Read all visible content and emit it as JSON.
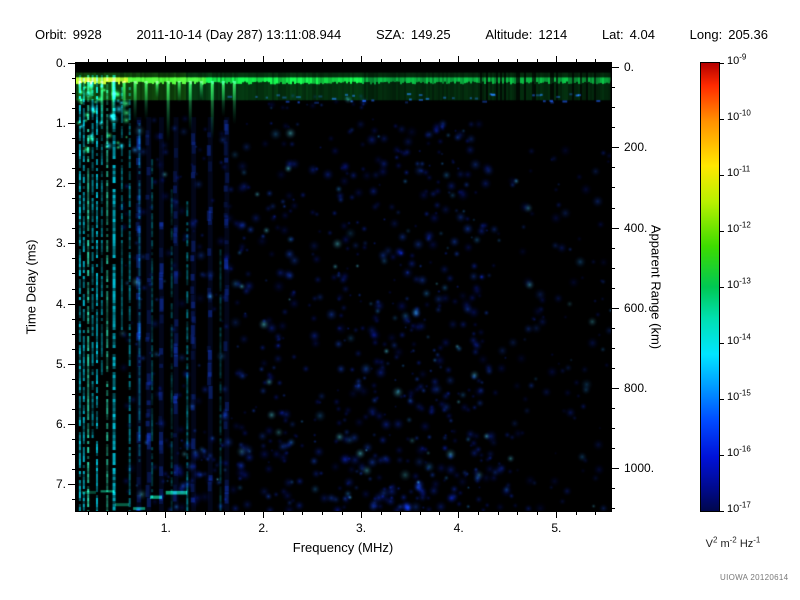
{
  "header": {
    "orbit_label": "Orbit:",
    "orbit": "9928",
    "datetime": "2011-10-14 (Day 287) 13:11:08.944",
    "sza_label": "SZA:",
    "sza": "149.25",
    "altitude_label": "Altitude:",
    "altitude": "1214",
    "lat_label": "Lat:",
    "lat": "4.04",
    "long_label": "Long:",
    "long": "205.36"
  },
  "chart_data": {
    "type": "heatmap",
    "xlabel": "Frequency (MHz)",
    "ylabel": "Time Delay (ms)",
    "ylabel_right": "Apparent Range (km)",
    "xlim": [
      0.08,
      5.56
    ],
    "ylim": [
      0,
      7.45
    ],
    "x_major_ticks": [
      1,
      2,
      3,
      4,
      5
    ],
    "x_tick_labels": [
      "1.",
      "2.",
      "3.",
      "4.",
      "5."
    ],
    "y_major_ticks": [
      0,
      1,
      2,
      3,
      4,
      5,
      6,
      7
    ],
    "y_tick_labels": [
      "0.",
      "1.",
      "2.",
      "3.",
      "4.",
      "5.",
      "6.",
      "7."
    ],
    "grid": false,
    "right_axis": {
      "ticks_km": [
        0,
        200,
        400,
        600,
        800,
        1000
      ],
      "tick_labels": [
        "0.",
        "200.",
        "400.",
        "600.",
        "800.",
        "1000."
      ],
      "km_per_ms": 150,
      "offset_ms": 0.07
    },
    "colorbar": {
      "base": "10",
      "exponents": [
        "-9",
        "-10",
        "-11",
        "-12",
        "-13",
        "-14",
        "-15",
        "-16",
        "-17"
      ],
      "scale_max": "1e-9",
      "scale_min": "1e-17",
      "unit_parts": [
        [
          "V",
          "2"
        ],
        [
          "m",
          "-2"
        ],
        [
          "Hz",
          "-1"
        ]
      ],
      "gradient": [
        [
          "#b40000",
          0
        ],
        [
          "#ff2a00",
          0.05
        ],
        [
          "#ff9100",
          0.13
        ],
        [
          "#ffe800",
          0.23
        ],
        [
          "#b8f000",
          0.31
        ],
        [
          "#3ddc00",
          0.41
        ],
        [
          "#00c853",
          0.5
        ],
        [
          "#00e0b0",
          0.57
        ],
        [
          "#00e5ff",
          0.65
        ],
        [
          "#009dff",
          0.72
        ],
        [
          "#0049ff",
          0.8
        ],
        [
          "#0012d8",
          0.88
        ],
        [
          "#000a8c",
          0.95
        ],
        [
          "#00074d",
          1
        ]
      ]
    },
    "features": {
      "surface_echo_delay_ms": 0.3,
      "faint_stripes": [
        0.72,
        0.82,
        0.95,
        1.1,
        1.28,
        1.45,
        1.62
      ],
      "sparse_bands": [
        [
          1.86,
          1.98
        ],
        [
          2.32,
          2.5
        ],
        [
          2.58,
          2.72
        ]
      ],
      "plasma_lines": [
        {
          "f": 0.12,
          "i": 0.9,
          "t0": 0.2,
          "t1": 7.45,
          "w": 2
        },
        {
          "f": 0.16,
          "i": 0.8,
          "t0": 0.2,
          "t1": 7.45,
          "w": 2
        },
        {
          "f": 0.205,
          "i": 0.95,
          "t0": 0.2,
          "t1": 7.45,
          "w": 2,
          "c": "#30f0c0"
        },
        {
          "f": 0.25,
          "i": 0.65,
          "t0": 0.2,
          "t1": 6.2,
          "w": 2
        },
        {
          "f": 0.295,
          "i": 0.85,
          "t0": 0.2,
          "t1": 7.45,
          "w": 2
        },
        {
          "f": 0.345,
          "i": 0.55,
          "t0": 0.2,
          "t1": 5.2,
          "w": 2
        },
        {
          "f": 0.4,
          "i": 0.75,
          "t0": 0.2,
          "t1": 7.45,
          "w": 2,
          "c": "#30f0c0"
        },
        {
          "f": 0.47,
          "i": 0.9,
          "t0": 0.2,
          "t1": 7.45,
          "w": 3
        },
        {
          "f": 0.55,
          "i": 0.5,
          "t0": 0.4,
          "t1": 4.4,
          "w": 2
        },
        {
          "f": 0.63,
          "i": 0.55,
          "t0": 0.4,
          "t1": 7.45,
          "w": 2
        },
        {
          "f": 0.73,
          "i": 0.4,
          "t0": 1.0,
          "t1": 6.6,
          "w": 2
        },
        {
          "f": 0.86,
          "i": 0.35,
          "t0": 1.6,
          "t1": 7.2,
          "w": 2
        },
        {
          "f": 1.06,
          "i": 0.3,
          "t0": 2.1,
          "t1": 7.45,
          "w": 2
        },
        {
          "f": 1.22,
          "i": 0.5,
          "t0": 2.3,
          "t1": 7.45,
          "w": 2
        },
        {
          "f": 1.56,
          "i": 0.28,
          "t0": 3.1,
          "t1": 7.45,
          "w": 2
        }
      ],
      "noise_regions": [
        {
          "f": [
            0.55,
            1.75
          ],
          "t": [
            0.9,
            7.45
          ],
          "count": 160,
          "b": 0.85
        },
        {
          "f": [
            1.75,
            4.3
          ],
          "t": [
            0.9,
            7.45
          ],
          "count": 430,
          "b": 1
        },
        {
          "f": [
            4.3,
            5.56
          ],
          "t": [
            1.4,
            7.45
          ],
          "count": 130,
          "b": 0.75
        },
        {
          "f": [
            0.9,
            4.6
          ],
          "t": [
            6.2,
            7.45
          ],
          "count": 160,
          "b": 1.05
        },
        {
          "f": [
            3.1,
            4.25
          ],
          "t": [
            1.0,
            7.4
          ],
          "count": 160,
          "b": 1
        },
        {
          "f": [
            1.75,
            2.95
          ],
          "t": [
            1.0,
            6.6
          ],
          "count": 130,
          "b": 1.05
        },
        {
          "f": [
            2.0,
            3.1
          ],
          "t": [
            0.5,
            0.75
          ],
          "count": 30,
          "b": 0.8,
          "size": 0.7
        }
      ]
    }
  },
  "watermark": "UIOWA 20120614"
}
